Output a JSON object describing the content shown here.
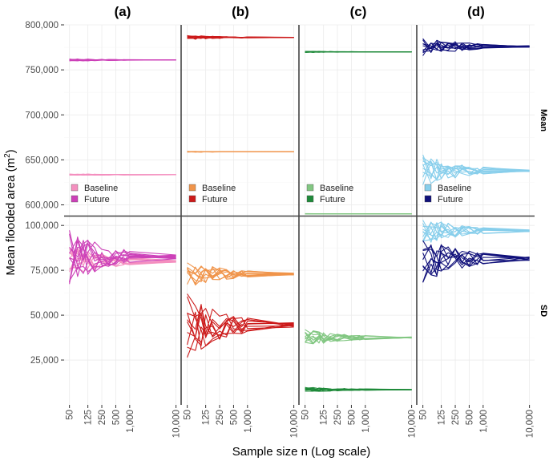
{
  "chart_data": {
    "type": "line",
    "ylabel_main": "Mean flooded area (m",
    "ylabel_sup": "2",
    "ylabel_tail": ")",
    "xlabel": "Sample size n (Log scale)",
    "panels": [
      "(a)",
      "(b)",
      "(c)",
      "(d)"
    ],
    "rows": [
      "Mean",
      "SD"
    ],
    "x_ticks": [
      50,
      125,
      250,
      500,
      1000,
      10000
    ],
    "x_tick_labels": [
      "50",
      "125",
      "250",
      "500",
      "1,000",
      "10,000"
    ],
    "x_scale": "log",
    "xlim": [
      45,
      11000
    ],
    "y_ranges": {
      "Mean": {
        "ylim": [
          588000,
          800000
        ],
        "ticks": [
          600000,
          650000,
          700000,
          750000,
          800000
        ],
        "tick_labels": [
          "600,000",
          "650,000",
          "700,000",
          "750,000",
          "800,000"
        ]
      },
      "SD": {
        "ylim": [
          0,
          105000
        ],
        "ticks": [
          25000,
          50000,
          75000,
          100000
        ],
        "tick_labels": [
          "25,000",
          "50,000",
          "75,000",
          "100,000"
        ]
      }
    },
    "legend": {
      "entries": [
        "Baseline",
        "Future"
      ],
      "placement": "bottom-left of each Mean panel"
    },
    "colors": {
      "a": {
        "baseline": "#f48fbf",
        "future": "#cc40b8"
      },
      "b": {
        "baseline": "#f0944a",
        "future": "#cc1a1a"
      },
      "c": {
        "baseline": "#82c782",
        "future": "#1f8a3a"
      },
      "d": {
        "baseline": "#87ceeb",
        "future": "#10107a"
      }
    },
    "series_levels": {
      "a": {
        "mean": {
          "baseline": 633500,
          "future": 761000
        },
        "sd": {
          "baseline": 80000,
          "future": 82500
        }
      },
      "b": {
        "mean": {
          "baseline": 659000,
          "future": 786000
        },
        "sd": {
          "baseline": 73000,
          "future": 44500
        }
      },
      "c": {
        "mean": {
          "baseline": 590000,
          "future": 770000
        },
        "sd": {
          "baseline": 37500,
          "future": 8500
        }
      },
      "d": {
        "mean": {
          "baseline": 638000,
          "future": 776000
        },
        "sd": {
          "baseline": 97000,
          "future": 81500
        }
      }
    },
    "series_spread_at_n50": {
      "a": {
        "mean": {
          "baseline": 1000,
          "future": 1500
        },
        "sd": {
          "baseline": 9000,
          "future": 16000
        }
      },
      "b": {
        "mean": {
          "baseline": 500,
          "future": 2500
        },
        "sd": {
          "baseline": 8000,
          "future": 19000
        }
      },
      "c": {
        "mean": {
          "baseline": 300,
          "future": 800
        },
        "sd": {
          "baseline": 5000,
          "future": 1500
        }
      },
      "d": {
        "mean": {
          "baseline": 18000,
          "future": 12000
        },
        "sd": {
          "baseline": 8000,
          "future": 14000
        }
      }
    },
    "replicate_lines": 10
  }
}
